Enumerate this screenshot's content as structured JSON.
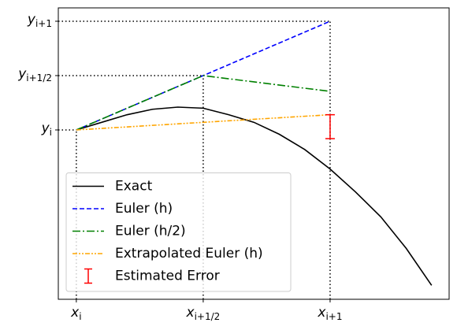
{
  "chart_data": {
    "type": "line",
    "xlim": [
      -0.071,
      1.469
    ],
    "ylim": [
      -1.558,
      1.123
    ],
    "xticks": [
      {
        "value": 0,
        "label": "x_i"
      },
      {
        "value": 0.5,
        "label": "x_i+1/2"
      },
      {
        "value": 1,
        "label": "x_i+1"
      }
    ],
    "yticks": [
      {
        "value": 0,
        "label": "y_i"
      },
      {
        "value": 0.5,
        "label": "y_i+1/2"
      },
      {
        "value": 1,
        "label": "y_i+1"
      }
    ],
    "legend": "lower left",
    "series": [
      {
        "name": "Exact",
        "color": "#000000",
        "dash": "solid",
        "x": [
          0,
          0.1,
          0.2,
          0.3,
          0.4,
          0.5,
          0.6,
          0.7,
          0.8,
          0.9,
          1.0,
          1.1,
          1.2,
          1.3,
          1.4
        ],
        "values": [
          0,
          0.07,
          0.14,
          0.19,
          0.21,
          0.2,
          0.14,
          0.07,
          -0.04,
          -0.18,
          -0.36,
          -0.57,
          -0.8,
          -1.09,
          -1.43
        ]
      },
      {
        "name": "Euler (h)",
        "color": "#0000ff",
        "dash": "dashed",
        "x": [
          0,
          1
        ],
        "values": [
          0,
          1
        ]
      },
      {
        "name": "Euler (h/2)",
        "color": "#008000",
        "dash": "dashdot",
        "x": [
          0,
          0.5,
          1
        ],
        "values": [
          0,
          0.5,
          0.355
        ]
      },
      {
        "name": "Extrapolated Euler (h)",
        "color": "#ffa500",
        "dash": "dashdotdot",
        "x": [
          0,
          1
        ],
        "values": [
          0,
          0.14
        ]
      }
    ],
    "errorbar": {
      "name": "Estimated Error",
      "color": "#ff0000",
      "x": 1,
      "value": 0.03,
      "error": 0.11
    }
  }
}
